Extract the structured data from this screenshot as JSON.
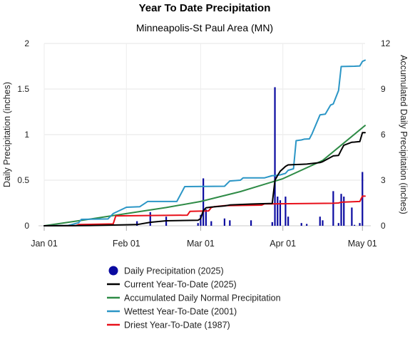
{
  "chart_data": {
    "type": "line",
    "title": "Year To Date Precipitation",
    "subtitle": "Minneapolis-St Paul Area (MN)",
    "y_left_label": "Daily Precipitation (inches)",
    "y_right_label": "Accumulated Daily Precipitation (inches)",
    "x_range": [
      "2025-01-01",
      "2025-05-02"
    ],
    "x_ticks": [
      {
        "date": "2025-01-01",
        "label": "Jan 01"
      },
      {
        "date": "2025-02-01",
        "label": "Feb 01"
      },
      {
        "date": "2025-03-01",
        "label": "Mar 01"
      },
      {
        "date": "2025-04-01",
        "label": "Apr 01"
      },
      {
        "date": "2025-05-01",
        "label": "May 01"
      }
    ],
    "y_left": {
      "min": 0,
      "max": 2,
      "ticks": [
        "0",
        "0.5",
        "1",
        "1.5",
        "2"
      ]
    },
    "y_right": {
      "min": 0,
      "max": 12,
      "ticks": [
        "0",
        "3",
        "6",
        "9",
        "12"
      ]
    },
    "grid": true,
    "legend_position": "bottom",
    "daily_precipitation": {
      "name": "Daily Precipitation (2025)",
      "color": "#0a0aa0",
      "dates": [
        "2025-01-15",
        "2025-01-22",
        "2025-02-05",
        "2025-02-10",
        "2025-02-16",
        "2025-02-28",
        "2025-03-01",
        "2025-03-02",
        "2025-03-03",
        "2025-03-05",
        "2025-03-10",
        "2025-03-12",
        "2025-03-20",
        "2025-03-28",
        "2025-03-29",
        "2025-03-30",
        "2025-03-31",
        "2025-04-02",
        "2025-04-03",
        "2025-04-08",
        "2025-04-10",
        "2025-04-15",
        "2025-04-16",
        "2025-04-20",
        "2025-04-22",
        "2025-04-23",
        "2025-04-24",
        "2025-04-27",
        "2025-04-28",
        "2025-04-30",
        "2025-05-01"
      ],
      "values": [
        0.01,
        0.02,
        0.05,
        0.15,
        0.1,
        0.03,
        0.12,
        0.52,
        0.18,
        0.05,
        0.08,
        0.06,
        0.06,
        0.04,
        1.52,
        0.32,
        0.28,
        0.32,
        0.1,
        0.03,
        0.02,
        0.1,
        0.06,
        0.38,
        0.03,
        0.35,
        0.32,
        0.2,
        0.01,
        0.03,
        0.59
      ]
    },
    "series": [
      {
        "name": "Current Year-To-Date (2025)",
        "color": "#000000",
        "dates": [
          "2025-01-01",
          "2025-01-15",
          "2025-01-22",
          "2025-02-05",
          "2025-02-10",
          "2025-02-16",
          "2025-02-28",
          "2025-03-01",
          "2025-03-02",
          "2025-03-03",
          "2025-03-05",
          "2025-03-10",
          "2025-03-12",
          "2025-03-20",
          "2025-03-28",
          "2025-03-29",
          "2025-03-30",
          "2025-03-31",
          "2025-04-02",
          "2025-04-03",
          "2025-04-08",
          "2025-04-10",
          "2025-04-15",
          "2025-04-16",
          "2025-04-20",
          "2025-04-22",
          "2025-04-23",
          "2025-04-24",
          "2025-04-27",
          "2025-04-28",
          "2025-04-30",
          "2025-05-01",
          "2025-05-02"
        ],
        "values": [
          0,
          0.01,
          0.03,
          0.08,
          0.23,
          0.33,
          0.36,
          0.48,
          1.0,
          1.18,
          1.23,
          1.31,
          1.37,
          1.43,
          1.47,
          2.99,
          3.31,
          3.59,
          3.91,
          4.01,
          4.04,
          4.06,
          4.16,
          4.22,
          4.6,
          4.63,
          4.98,
          5.3,
          5.5,
          5.51,
          5.54,
          6.13,
          6.13
        ]
      },
      {
        "name": "Accumulated Daily Normal Precipitation",
        "color": "#2e8b46",
        "dates": [
          "2025-01-01",
          "2025-01-16",
          "2025-02-01",
          "2025-02-16",
          "2025-03-01",
          "2025-03-16",
          "2025-04-01",
          "2025-04-16",
          "2025-05-02"
        ],
        "values": [
          0,
          0.38,
          0.8,
          1.2,
          1.6,
          2.25,
          3.1,
          4.3,
          6.6
        ]
      },
      {
        "name": "Wettest Year-To-Date (2001)",
        "color": "#2b96c6",
        "dates": [
          "2025-01-01",
          "2025-01-10",
          "2025-01-14",
          "2025-01-15",
          "2025-01-25",
          "2025-01-27",
          "2025-02-01",
          "2025-02-06",
          "2025-02-09",
          "2025-02-20",
          "2025-02-23",
          "2025-03-10",
          "2025-03-12",
          "2025-03-16",
          "2025-03-17",
          "2025-03-25",
          "2025-03-28",
          "2025-03-29",
          "2025-03-31",
          "2025-04-02",
          "2025-04-03",
          "2025-04-05",
          "2025-04-06",
          "2025-04-08",
          "2025-04-09",
          "2025-04-11",
          "2025-04-12",
          "2025-04-15",
          "2025-04-17",
          "2025-04-19",
          "2025-04-20",
          "2025-04-22",
          "2025-04-23",
          "2025-04-28",
          "2025-04-30",
          "2025-05-01",
          "2025-05-02"
        ],
        "values": [
          0,
          0.02,
          0.2,
          0.42,
          0.45,
          0.8,
          1.22,
          1.25,
          1.6,
          1.6,
          2.58,
          2.6,
          2.95,
          3.0,
          3.15,
          3.15,
          3.3,
          3.3,
          3.35,
          3.45,
          3.65,
          3.75,
          5.6,
          5.65,
          5.7,
          5.72,
          6.05,
          7.3,
          7.35,
          7.95,
          8.02,
          8.9,
          10.48,
          10.5,
          10.52,
          10.82,
          10.9
        ]
      },
      {
        "name": "Driest Year-To-Date (1987)",
        "color": "#e8101a",
        "dates": [
          "2025-01-01",
          "2025-01-13",
          "2025-01-14",
          "2025-01-27",
          "2025-01-28",
          "2025-02-24",
          "2025-02-25",
          "2025-03-04",
          "2025-03-05",
          "2025-03-06",
          "2025-03-10",
          "2025-03-24",
          "2025-03-25",
          "2025-04-20",
          "2025-04-22",
          "2025-04-23",
          "2025-04-30",
          "2025-05-01",
          "2025-05-02"
        ],
        "values": [
          0,
          0.01,
          0.08,
          0.12,
          0.65,
          0.7,
          0.95,
          0.98,
          1.2,
          1.25,
          1.32,
          1.36,
          1.44,
          1.48,
          1.5,
          1.55,
          1.6,
          1.95,
          1.95
        ]
      }
    ]
  }
}
